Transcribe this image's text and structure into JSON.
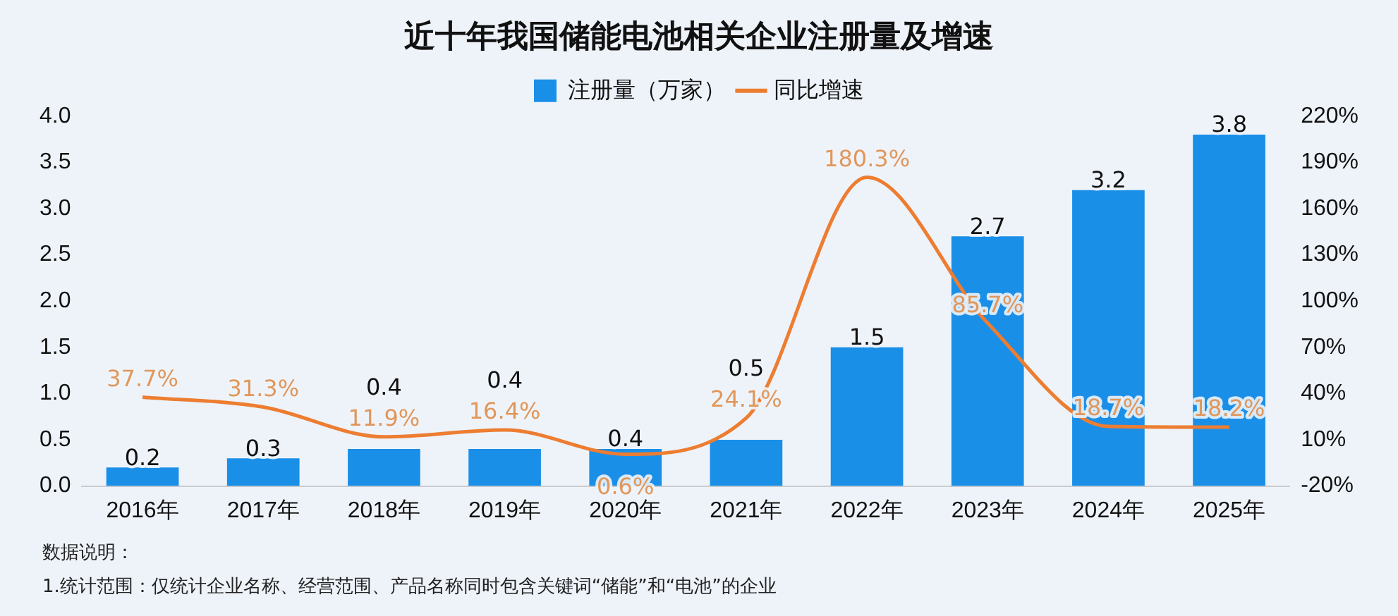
{
  "chart_data": {
    "type": "bar",
    "title": "近十年我国储能电池相关企业注册量及增速",
    "categories": [
      "2016年",
      "2017年",
      "2018年",
      "2019年",
      "2020年",
      "2021年",
      "2022年",
      "2023年",
      "2024年",
      "2025年"
    ],
    "series": [
      {
        "name": "注册量（万家）",
        "color": "#1a8fe8",
        "values": [
          0.2,
          0.3,
          0.4,
          0.4,
          0.4,
          0.5,
          1.5,
          2.7,
          3.2,
          3.8
        ],
        "value_labels": [
          "0.2",
          "0.3",
          "0.4",
          "0.4",
          "0.4",
          "0.5",
          "1.5",
          "2.7",
          "3.2",
          "3.8"
        ]
      },
      {
        "name": "同比增速",
        "type": "line",
        "axis": "y2",
        "color": "#ed7d31",
        "values": [
          37.7,
          31.3,
          11.9,
          16.4,
          0.6,
          24.1,
          180.3,
          85.7,
          18.7,
          18.2
        ],
        "value_labels": [
          "37.7%",
          "31.3%",
          "11.9%",
          "16.4%",
          "0.6%",
          "24.1%",
          "180.3%",
          "85.7%",
          "18.7%",
          "18.2%"
        ]
      }
    ],
    "ylim": [
      0,
      4
    ],
    "yticks": [
      {
        "value": 0,
        "label": "0.0"
      },
      0.5,
      {
        "value": 1,
        "label": "1.0"
      },
      1.5,
      {
        "value": 2,
        "label": "2.0"
      },
      2.5,
      {
        "value": 3,
        "label": "3.0"
      },
      3.5,
      {
        "value": 4,
        "label": "4.0"
      }
    ],
    "y2lim": [
      -20,
      220
    ],
    "y2ticks": [
      {
        "value": -20,
        "label": "-20%"
      },
      {
        "value": 10,
        "label": "10%"
      },
      {
        "value": 40,
        "label": "40%"
      },
      {
        "value": 70,
        "label": "70%"
      },
      {
        "value": 100,
        "label": "100%"
      },
      {
        "value": 130,
        "label": "130%"
      },
      {
        "value": 160,
        "label": "160%"
      },
      {
        "value": 190,
        "label": "190%"
      },
      {
        "value": 220,
        "label": "220%"
      }
    ],
    "grid": false,
    "legend": "top",
    "marker": "none",
    "annotations": [
      "数据说明：",
      "1.统计范围：仅统计企业名称、经营范围、产品名称同时包含关键词“储能”和“电池”的企业"
    ]
  }
}
